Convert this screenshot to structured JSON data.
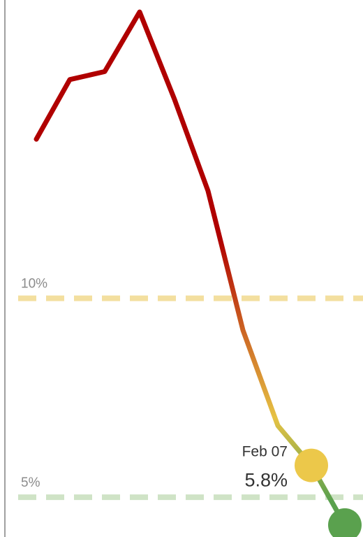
{
  "chart_data": {
    "type": "line",
    "title": "",
    "xlabel": "",
    "ylabel": "",
    "ylim": [
      4.0,
      17.5
    ],
    "series": [
      {
        "values": [
          14.0,
          15.5,
          15.7,
          17.2,
          15.0,
          12.7,
          9.2,
          6.8,
          5.8,
          4.3
        ]
      }
    ],
    "reference_lines": [
      {
        "value": 10,
        "label": "10%",
        "color": "#f3df9f"
      },
      {
        "value": 5,
        "label": "5%",
        "color": "#cfe3c6"
      }
    ],
    "highlight": {
      "index": 8,
      "date_label": "Feb 07",
      "value_label": "5.8%",
      "marker_color": "#ecc84a"
    },
    "last_point": {
      "index": 9,
      "marker_color": "#5aa14e"
    },
    "colors": {
      "high": "#b00000",
      "mid": "#e6c244",
      "low": "#5aa14e",
      "axis": "#808080"
    },
    "grid": false,
    "legend": "none"
  }
}
